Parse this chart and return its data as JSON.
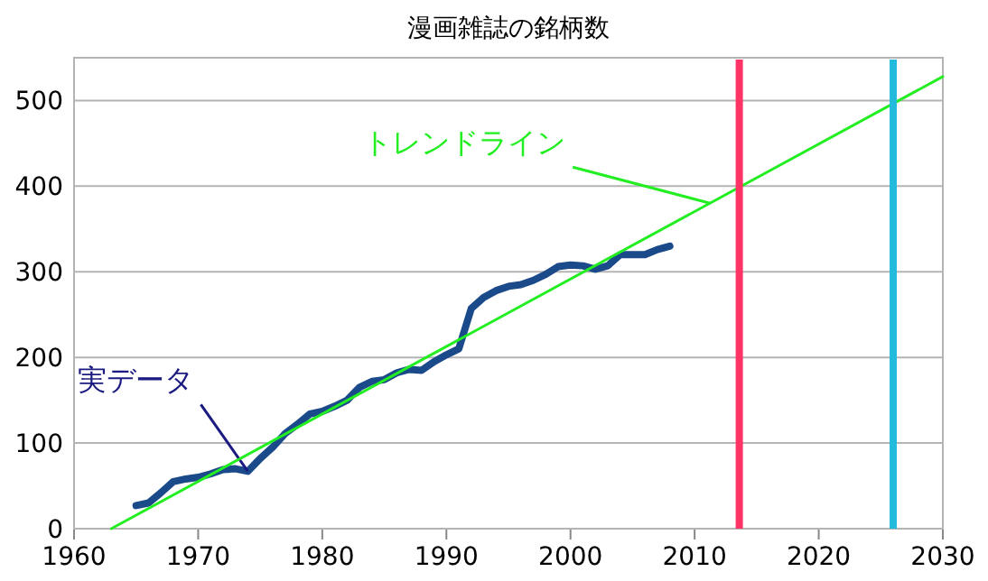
{
  "chart_data": {
    "type": "line",
    "title": "漫画雑誌の銘柄数",
    "xlim": [
      1960,
      2030
    ],
    "xticks": [
      1960,
      1970,
      1980,
      1990,
      2000,
      2010,
      2020,
      2030
    ],
    "ylim": [
      0,
      550
    ],
    "yticks": [
      0,
      100,
      200,
      300,
      400,
      500
    ],
    "grid": "y",
    "marker": "none",
    "line_style": "solid",
    "series": [
      {
        "name": "実データ",
        "color": "#1a4a8a",
        "x": [
          1965,
          1966,
          1967,
          1968,
          1969,
          1970,
          1971,
          1972,
          1973,
          1974,
          1975,
          1976,
          1977,
          1978,
          1979,
          1980,
          1981,
          1982,
          1983,
          1984,
          1985,
          1986,
          1987,
          1988,
          1989,
          1990,
          1991,
          1992,
          1993,
          1994,
          1995,
          1996,
          1997,
          1998,
          1999,
          2000,
          2001,
          2002,
          2003,
          2004,
          2005,
          2006,
          2007,
          2008
        ],
        "values": [
          27,
          30,
          42,
          55,
          58,
          60,
          64,
          69,
          70,
          67,
          82,
          95,
          111,
          122,
          134,
          137,
          143,
          150,
          165,
          172,
          174,
          182,
          186,
          185,
          195,
          203,
          210,
          257,
          270,
          278,
          283,
          285,
          290,
          297,
          306,
          308,
          307,
          303,
          307,
          320,
          320,
          320,
          326,
          330
        ]
      },
      {
        "name": "トレンドライン",
        "color": "#22ee22",
        "type": "line",
        "x": [
          1963,
          2030
        ],
        "values": [
          0,
          528
        ]
      }
    ],
    "ref_lines": [
      {
        "axis": "x",
        "value": 2013.6,
        "color": "#ff3366"
      },
      {
        "axis": "x",
        "value": 2026,
        "color": "#22bbdd"
      }
    ]
  }
}
